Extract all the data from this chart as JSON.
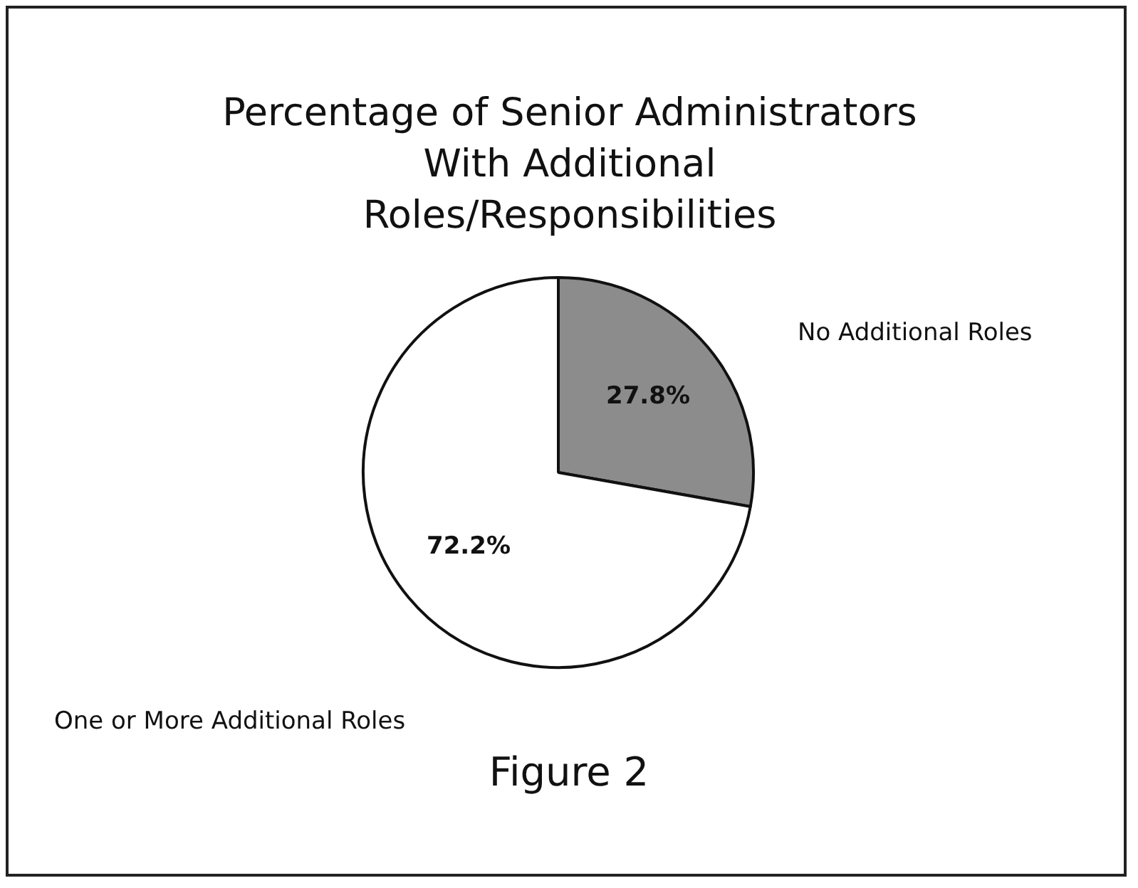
{
  "chart_data": {
    "type": "pie",
    "title": "Percentage of Senior Administrators With Additional Roles/Responsibilities",
    "categories": [
      "No Additional Roles",
      "One or More Additional Roles"
    ],
    "values": [
      27.8,
      72.2
    ],
    "value_labels": [
      "27.8%",
      "72.2%"
    ],
    "colors": [
      "#8c8c8c",
      "#ffffff"
    ],
    "legend": false,
    "annotations": [
      "Figure 2"
    ]
  }
}
